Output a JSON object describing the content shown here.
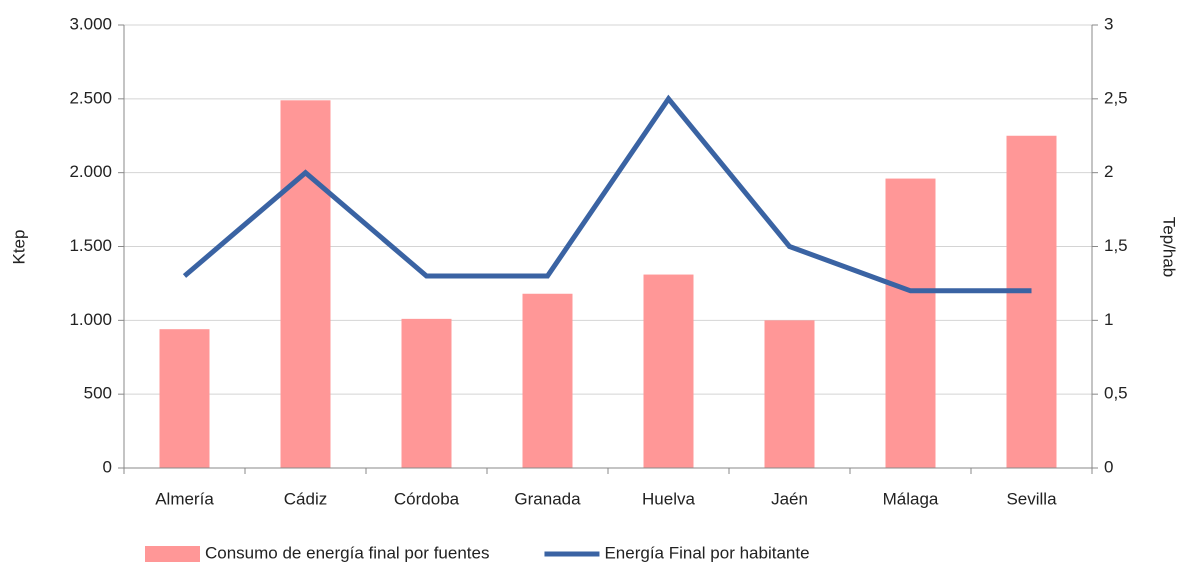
{
  "chart_data": {
    "type": "bar",
    "categories": [
      "Almería",
      "Cádiz",
      "Córdoba",
      "Granada",
      "Huelva",
      "Jaén",
      "Málaga",
      "Sevilla"
    ],
    "series": [
      {
        "name": "Consumo de energía final por fuentes",
        "type": "bar",
        "color": "#ff9797",
        "values": [
          940,
          2490,
          1010,
          1180,
          1310,
          1000,
          1960,
          2250
        ]
      },
      {
        "name": "Energía Final por habitante",
        "type": "line",
        "axis": "y2",
        "color": "#3a63a3",
        "values": [
          1.3,
          2.0,
          1.3,
          1.3,
          2.5,
          1.5,
          1.2,
          1.2
        ]
      }
    ],
    "y_label": "Ktep",
    "y2_label": "Tep/hab",
    "ylim": [
      0,
      3000
    ],
    "yticks": [
      0,
      {
        "value": 500,
        "label": "500"
      },
      {
        "value": 1000,
        "label": "1.000"
      },
      {
        "value": 1500,
        "label": "1.500"
      },
      {
        "value": 2000,
        "label": "2.000"
      },
      {
        "value": 2500,
        "label": "2.500"
      },
      {
        "value": 3000,
        "label": "3.000"
      }
    ],
    "y2lim": [
      0,
      3
    ],
    "y2ticks": [
      0,
      {
        "value": 0.5,
        "label": "0,5"
      },
      1,
      {
        "value": 1.5,
        "label": "1,5"
      },
      2,
      {
        "value": 2.5,
        "label": "2,5"
      },
      3
    ],
    "grid": true,
    "legend": "bottom"
  }
}
